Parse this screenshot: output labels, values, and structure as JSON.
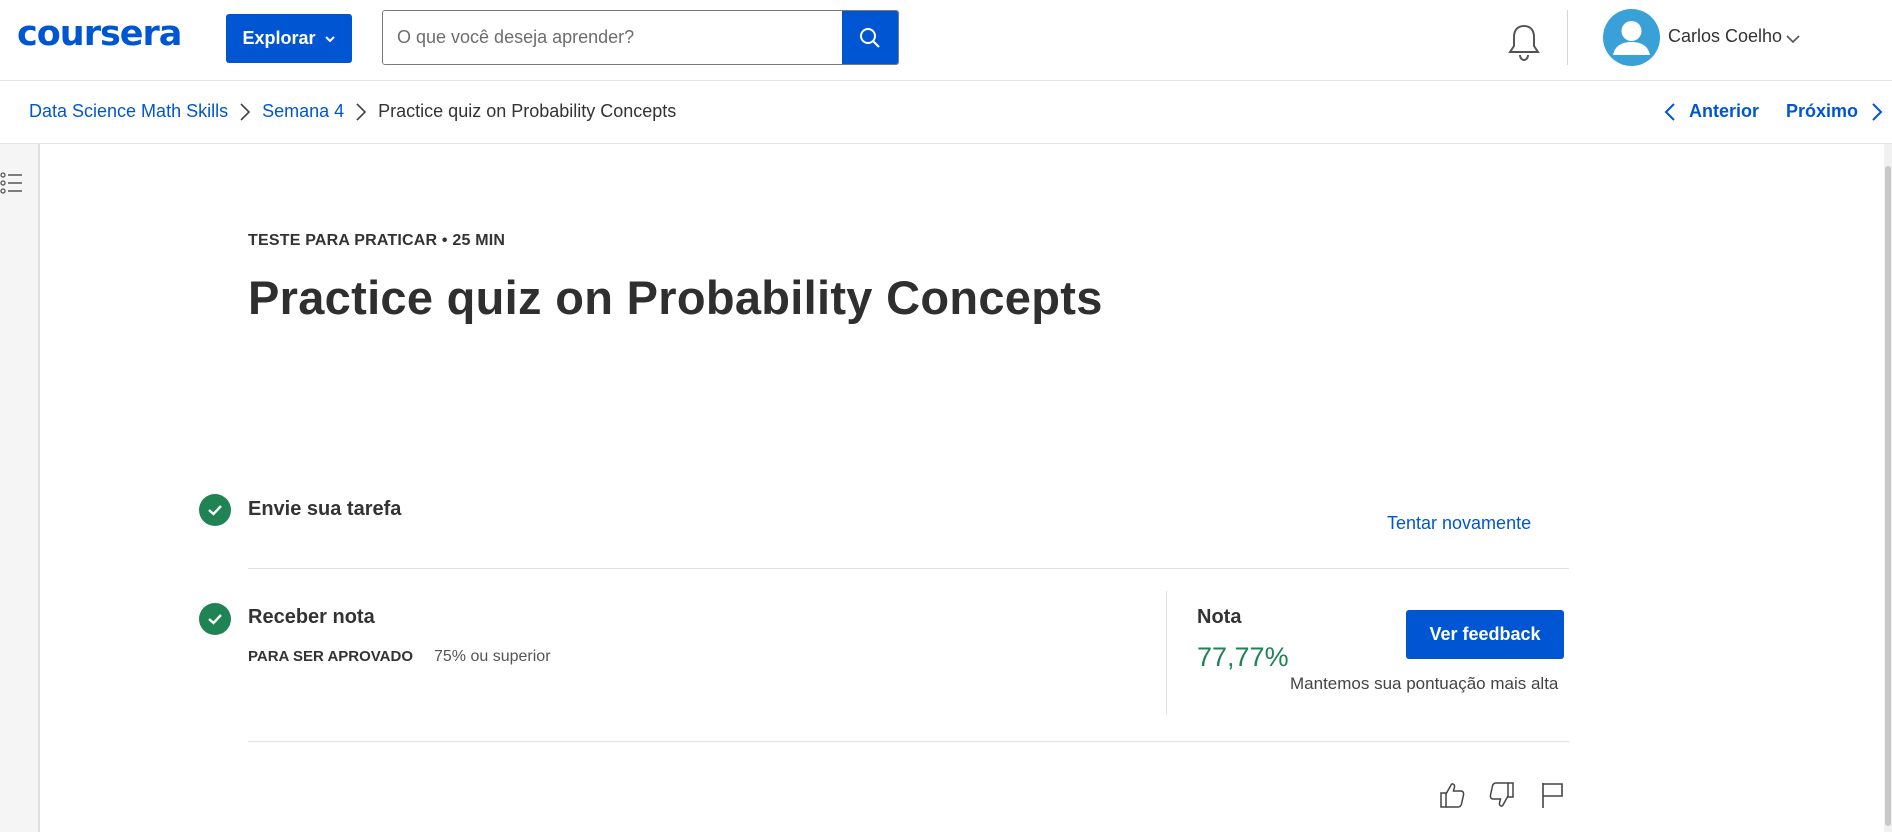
{
  "header": {
    "logo": "coursera",
    "explore_label": "Explorar",
    "search_placeholder": "O que você deseja aprender?",
    "user_name": "Carlos Coelho"
  },
  "breadcrumb": {
    "items": [
      "Data Science Math Skills",
      "Semana 4"
    ],
    "current": "Practice quiz on Probability Concepts",
    "prev_label": "Anterior",
    "next_label": "Próximo"
  },
  "main": {
    "eyebrow": "TESTE PARA PRATICAR • 25 MIN",
    "title": "Practice quiz on Probability Concepts",
    "step1": {
      "title": "Envie sua tarefa",
      "action": "Tentar novamente"
    },
    "step2": {
      "title": "Receber nota",
      "pass_label": "PARA SER APROVADO",
      "pass_value": "75% ou superior",
      "grade_label": "Nota",
      "grade_value": "77,77%",
      "feedback_button": "Ver feedback",
      "grade_note": "Mantemos sua pontuação mais alta"
    }
  },
  "colors": {
    "brand": "#0056d2",
    "success": "#1f8354"
  },
  "icons": [
    "search-icon",
    "bell-icon",
    "avatar-icon",
    "chevron-down-icon",
    "chevron-right-icon",
    "chevron-left-icon",
    "list-icon",
    "check-icon",
    "thumbs-up-icon",
    "thumbs-down-icon",
    "flag-icon"
  ]
}
